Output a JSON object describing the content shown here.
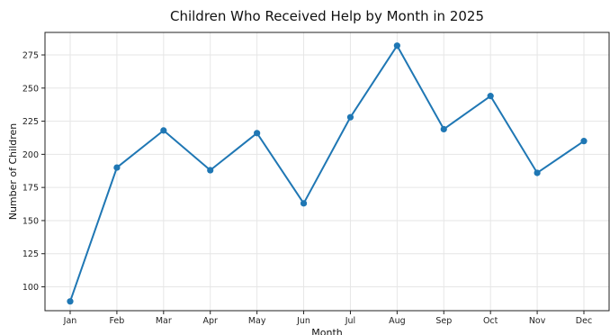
{
  "chart_data": {
    "type": "line",
    "title": "Children Who Received Help by Month in 2025",
    "xlabel": "Month",
    "ylabel": "Number of Children",
    "categories": [
      "Jan",
      "Feb",
      "Mar",
      "Apr",
      "May",
      "Jun",
      "Jul",
      "Aug",
      "Sep",
      "Oct",
      "Nov",
      "Dec"
    ],
    "values": [
      89,
      190,
      218,
      188,
      216,
      163,
      228,
      282,
      219,
      244,
      186,
      210
    ],
    "ylim": [
      82,
      292
    ],
    "yticks": [
      100,
      125,
      150,
      175,
      200,
      225,
      250,
      275
    ],
    "grid": true,
    "colors": {
      "line": "#1f77b4"
    }
  }
}
